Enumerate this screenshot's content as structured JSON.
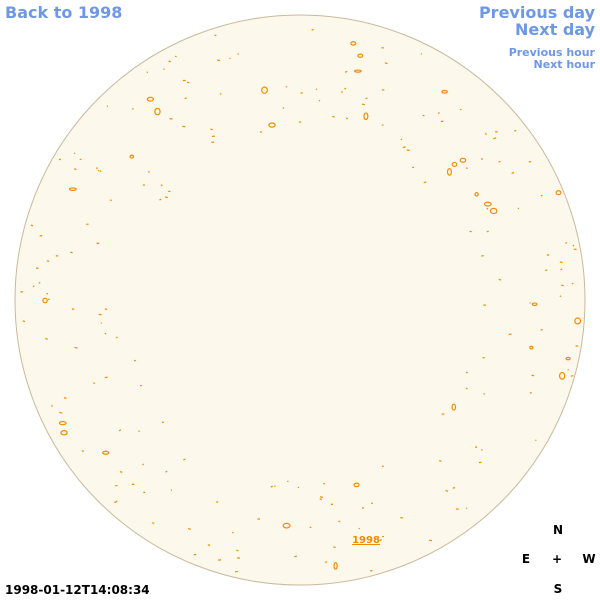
{
  "links": {
    "back_year": "Back to 1998",
    "previous_day": "Previous day",
    "next_day": "Next day",
    "previous_hour": "Previous hour",
    "next_hour": "Next hour"
  },
  "disk_label": "1998",
  "timestamp": "1998-01-12T14:08:34",
  "compass": {
    "north": "N",
    "east": "E",
    "center": "+",
    "west": "W",
    "south": "S"
  }
}
